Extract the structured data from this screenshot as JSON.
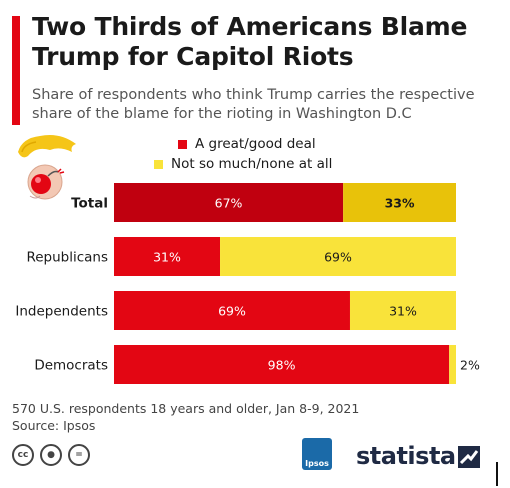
{
  "title": "Two Thirds of Americans Blame Trump for Capitol Riots",
  "subtitle": "Share of respondents who think Trump carries the respective share of the blame for the rioting in Washington D.C",
  "legend": {
    "great": "A great/good deal",
    "notmuch": "Not so much/none at all"
  },
  "colors": {
    "accent": "#e30613",
    "great": "#e30613",
    "great_total": "#c0000f",
    "notmuch": "#f9e33a",
    "notmuch_total": "#e8c20a",
    "brand": "#1f2a44"
  },
  "footnote": {
    "line1": "570 U.S. respondents 18 years and older, Jan 8-9, 2021",
    "line2": "Source: Ipsos"
  },
  "logos": {
    "ipsos": "Ipsos",
    "statista": "statista"
  },
  "icons": [
    "trump-bomb-icon",
    "cc-icon",
    "by-icon",
    "equals-icon",
    "statista-logo-icon"
  ],
  "chart_data": {
    "type": "bar",
    "orientation": "horizontal",
    "stacked": true,
    "categories": [
      "Total",
      "Republicans",
      "Independents",
      "Democrats"
    ],
    "series": [
      {
        "name": "A great/good deal",
        "values": [
          67,
          31,
          69,
          98
        ]
      },
      {
        "name": "Not so much/none at all",
        "values": [
          33,
          69,
          31,
          2
        ]
      }
    ],
    "labels": [
      [
        "67%",
        "31%",
        "69%",
        "98%"
      ],
      [
        "33%",
        "69%",
        "31%",
        "2%"
      ]
    ],
    "xlim": [
      0,
      100
    ],
    "unit": "%",
    "grid": false,
    "legend_position": "top"
  }
}
